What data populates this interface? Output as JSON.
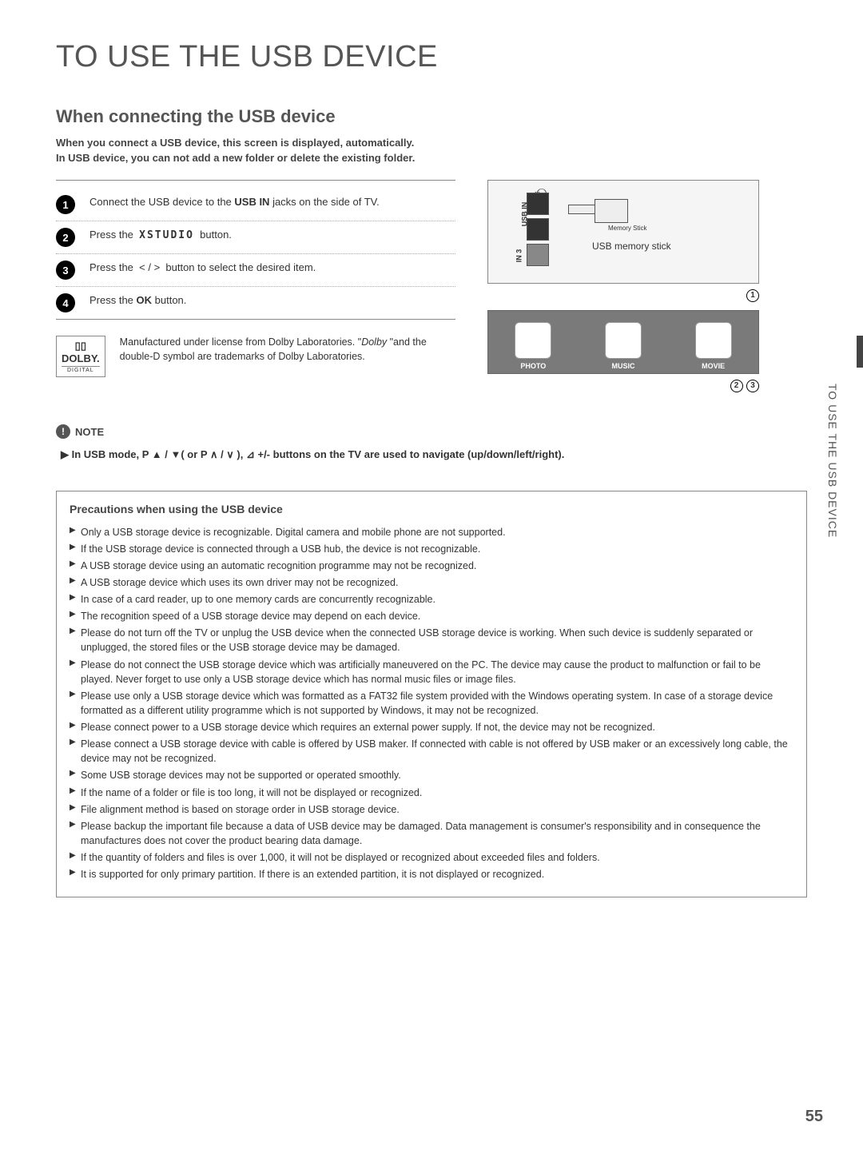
{
  "title": "TO USE THE USB DEVICE",
  "subtitle": "When connecting the USB device",
  "intro1": "When you connect a USB device, this screen is displayed, automatically.",
  "intro2": "In USB device, you can not add a new folder or delete the existing folder.",
  "steps": [
    {
      "n": "1",
      "html": "Connect the USB device to the <b>USB IN</b> jacks on the side of TV."
    },
    {
      "n": "2",
      "html": "Press the &nbsp;<span class='xstudio'>XSTUDIO</span>&nbsp; button."
    },
    {
      "n": "3",
      "html": "Press the &nbsp;<span class='angle'>&lt; / &gt;</span>&nbsp; button to select the desired item."
    },
    {
      "n": "4",
      "html": "Press the <b>OK</b> button."
    }
  ],
  "dolby": {
    "brand": "DOLBY.",
    "sub": "DIGITAL",
    "text": "Manufactured under license from Dolby Laboratories. \"<i>Dolby </i>\"and the double-D symbol are trademarks of Dolby Laboratories."
  },
  "diagram": {
    "usbin": "USB IN",
    "in3": "IN 3",
    "memstick": "Memory Stick",
    "caption": "USB memory stick"
  },
  "menu": {
    "photo": "PHOTO",
    "music": "MUSIC",
    "movie": "MOVIE"
  },
  "note": {
    "title": "NOTE",
    "text": "In USB mode, P ▲ / ▼( or P ∧ / ∨ ), ⊿ +/-  buttons on the TV are used to navigate (up/down/left/right)."
  },
  "precautions_title": "Precautions when using the USB device",
  "precautions": [
    "Only a USB storage device is recognizable. Digital camera and mobile phone are not supported.",
    "If the USB storage device is connected through a USB hub, the device is not recognizable.",
    "A USB storage device using an automatic recognition programme may not be recognized.",
    "A USB storage device which uses its own driver may not be recognized.",
    "In case of a card reader, up to one memory cards are concurrently recognizable.",
    "The recognition speed of a USB storage device may depend on each device.",
    "Please do not turn off the TV or unplug the USB device when the connected USB storage device is working. When such device is suddenly separated or unplugged, the stored files or the USB storage device may be damaged.",
    "Please do not connect the USB storage device which was artificially maneuvered on the PC. The device may cause the product to malfunction or fail to be played.  Never forget to use only a USB storage device which has normal music files or image files.",
    "Please use only a USB storage device which was formatted as a FAT32 file system provided with the Windows operating system.  In case of a storage device formatted as a different utility programme which is not supported by Windows, it may not be recognized.",
    "Please connect power to a USB storage device which requires an external power supply.  If not, the device may not be recognized.",
    "Please connect a USB storage device with cable is offered by USB maker.  If connected with cable is not offered by USB maker or an excessively long cable, the device may not be recognized.",
    "Some USB storage devices may not be supported or operated smoothly.",
    "If the name of a folder or file is too long, it will not be displayed or recognized.",
    "File alignment method is based on storage order in USB storage device.",
    "Please backup the important file because a data of USB device may be damaged. Data management is consumer's responsibility and in consequence the manufactures does not cover the product bearing data damage.",
    "If the quantity of folders and files is over 1,000, it will not be displayed or recognized about exceeded files and folders.",
    "It is supported for only primary partition. If there is an extended partition, it is not displayed or recognized."
  ],
  "side_label": "TO USE THE USB DEVICE",
  "page_num": "55",
  "colors": {
    "text": "#333333",
    "heading": "#555555",
    "border": "#888888",
    "bg": "#ffffff"
  }
}
